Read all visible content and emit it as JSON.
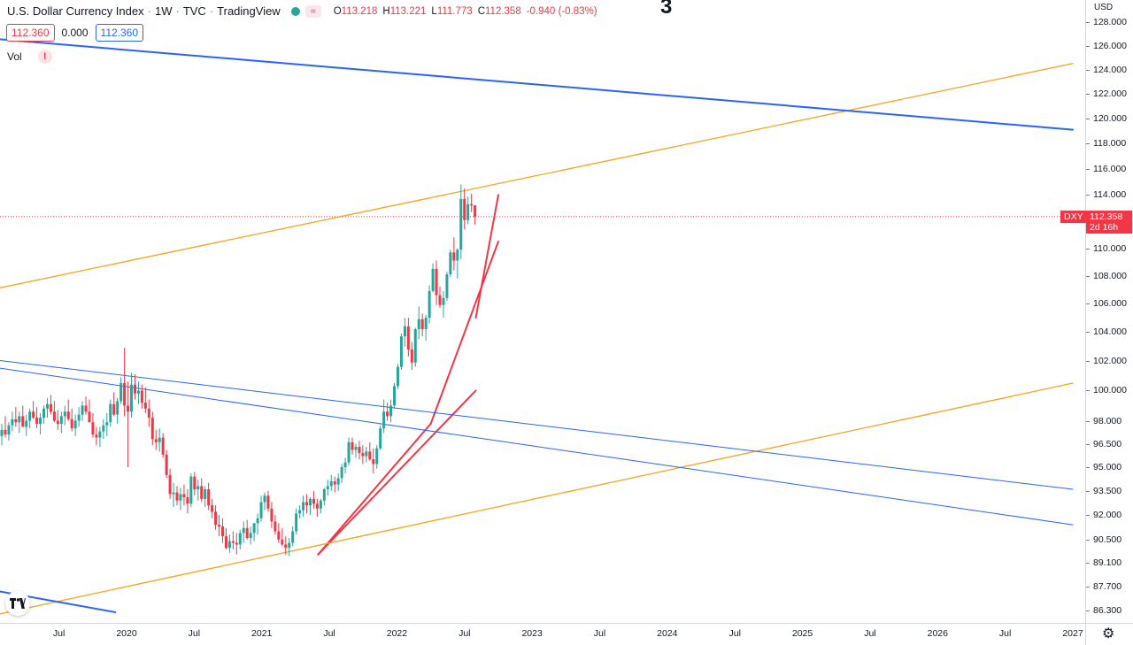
{
  "header": {
    "symbol_name": "U.S. Dollar Currency Index",
    "interval": "1W",
    "exchange": "TVC",
    "source": "TradingView",
    "ohlc": [
      {
        "k": "O",
        "v": "113.218"
      },
      {
        "k": "H",
        "v": "113.221"
      },
      {
        "k": "L",
        "v": "111.773"
      },
      {
        "k": "C",
        "v": "112.358"
      },
      {
        "k": "",
        "v": "-0.940 (-0.83%)"
      }
    ],
    "sell_price": "112.360",
    "spread": "0.000",
    "buy_price": "112.360",
    "volume_label": "Vol",
    "warning_glyph": "!",
    "annotation_digit": "3"
  },
  "price_axis": {
    "currency": "USD",
    "ticks": [
      "128.000",
      "126.000",
      "124.000",
      "122.000",
      "120.000",
      "118.000",
      "116.000",
      "114.000",
      "112.000",
      "110.000",
      "108.000",
      "106.000",
      "104.000",
      "102.000",
      "100.000",
      "98.000",
      "96.500",
      "95.000",
      "93.500",
      "92.000",
      "90.500",
      "89.100",
      "87.700",
      "86.300"
    ],
    "symbol_tag": "DXY",
    "last_price": "112.358",
    "countdown": "2d 16h"
  },
  "time_axis": {
    "labels": [
      "Jul",
      "2020",
      "Jul",
      "2021",
      "Jul",
      "2022",
      "Jul",
      "2023",
      "Jul",
      "2024",
      "Jul",
      "2025",
      "Jul",
      "2026",
      "Jul",
      "2027"
    ]
  },
  "colors": {
    "up": "#26a69a",
    "down": "#f23645",
    "trend_red": "#f23645",
    "channel_orange": "#f7a21b",
    "line_blue": "#2962ff",
    "price_line": "#f23645"
  },
  "icons": {
    "logo": "tradingview-logo-icon",
    "settings": "gear-icon",
    "data_source": "waves-icon"
  },
  "chart_data": {
    "type": "candlestick",
    "title": "U.S. Dollar Currency Index",
    "interval": "1W",
    "y_scale": "log",
    "ylim": [
      86.3,
      128.0
    ],
    "last_close": 112.358,
    "candles_weekly_approx": [
      [
        97.0,
        97.8,
        96.4,
        97.4
      ],
      [
        97.4,
        98.3,
        96.9,
        97.1
      ],
      [
        97.1,
        97.9,
        96.7,
        97.7
      ],
      [
        97.7,
        98.6,
        97.3,
        98.1
      ],
      [
        98.1,
        98.9,
        97.6,
        97.9
      ],
      [
        97.9,
        98.6,
        97.2,
        98.3
      ],
      [
        98.3,
        99.0,
        97.8,
        97.6
      ],
      [
        97.6,
        98.4,
        97.0,
        98.0
      ],
      [
        98.0,
        98.8,
        97.5,
        98.6
      ],
      [
        98.6,
        99.3,
        98.1,
        98.2
      ],
      [
        98.2,
        98.9,
        97.5,
        97.8
      ],
      [
        97.8,
        98.5,
        97.1,
        98.2
      ],
      [
        98.2,
        99.0,
        97.8,
        98.8
      ],
      [
        98.8,
        99.5,
        98.2,
        99.1
      ],
      [
        99.1,
        99.7,
        98.4,
        98.6
      ],
      [
        98.6,
        99.3,
        97.9,
        98.0
      ],
      [
        98.0,
        98.7,
        97.4,
        97.8
      ],
      [
        97.8,
        98.6,
        97.2,
        98.3
      ],
      [
        98.3,
        99.0,
        97.7,
        98.6
      ],
      [
        98.6,
        99.4,
        98.0,
        98.1
      ],
      [
        98.1,
        98.8,
        97.3,
        97.5
      ],
      [
        97.5,
        98.4,
        97.0,
        98.0
      ],
      [
        98.0,
        98.9,
        97.6,
        98.4
      ],
      [
        98.4,
        99.3,
        98.0,
        99.0
      ],
      [
        99.0,
        99.6,
        98.4,
        98.6
      ],
      [
        98.6,
        99.4,
        98.0,
        97.9
      ],
      [
        97.9,
        98.5,
        96.9,
        97.1
      ],
      [
        97.1,
        97.6,
        96.4,
        96.9
      ],
      [
        96.9,
        97.6,
        96.3,
        97.3
      ],
      [
        97.3,
        98.1,
        96.8,
        97.7
      ],
      [
        97.7,
        98.5,
        97.0,
        97.9
      ],
      [
        97.9,
        99.4,
        97.6,
        99.1
      ],
      [
        99.1,
        99.9,
        98.3,
        98.4
      ],
      [
        98.4,
        99.5,
        97.8,
        99.3
      ],
      [
        99.3,
        100.9,
        99.1,
        100.5
      ],
      [
        100.5,
        102.9,
        98.3,
        99.0
      ],
      [
        99.0,
        100.6,
        95.0,
        98.6
      ],
      [
        98.6,
        101.2,
        98.2,
        100.4
      ],
      [
        100.4,
        101.1,
        99.4,
        99.8
      ],
      [
        99.8,
        100.6,
        99.1,
        100.0
      ],
      [
        100.0,
        100.4,
        98.8,
        99.2
      ],
      [
        99.2,
        100.2,
        98.5,
        98.8
      ],
      [
        98.8,
        99.4,
        97.6,
        98.2
      ],
      [
        98.2,
        98.6,
        96.4,
        96.8
      ],
      [
        96.8,
        97.4,
        96.1,
        96.6
      ],
      [
        96.6,
        97.5,
        96.0,
        96.9
      ],
      [
        96.9,
        97.2,
        95.6,
        95.8
      ],
      [
        95.8,
        96.1,
        94.3,
        94.5
      ],
      [
        94.5,
        94.9,
        93.0,
        93.3
      ],
      [
        93.3,
        94.0,
        92.5,
        93.4
      ],
      [
        93.4,
        93.8,
        92.6,
        92.9
      ],
      [
        92.9,
        93.7,
        92.3,
        93.3
      ],
      [
        93.3,
        93.9,
        92.6,
        93.1
      ],
      [
        93.1,
        93.6,
        92.1,
        92.7
      ],
      [
        92.7,
        94.6,
        92.5,
        94.4
      ],
      [
        94.4,
        94.7,
        93.2,
        93.6
      ],
      [
        93.6,
        94.2,
        92.9,
        93.8
      ],
      [
        93.8,
        94.3,
        92.8,
        93.0
      ],
      [
        93.0,
        93.8,
        92.5,
        93.6
      ],
      [
        93.6,
        94.0,
        92.3,
        92.6
      ],
      [
        92.6,
        93.0,
        91.8,
        92.2
      ],
      [
        92.2,
        92.6,
        91.1,
        91.4
      ],
      [
        91.4,
        92.0,
        90.7,
        91.3
      ],
      [
        91.3,
        91.8,
        90.3,
        90.7
      ],
      [
        90.7,
        91.2,
        89.9,
        90.0
      ],
      [
        90.0,
        90.8,
        89.7,
        90.4
      ],
      [
        90.4,
        91.0,
        89.9,
        90.3
      ],
      [
        90.3,
        90.9,
        89.6,
        90.2
      ],
      [
        90.2,
        91.1,
        89.9,
        90.9
      ],
      [
        90.9,
        91.6,
        90.3,
        91.2
      ],
      [
        91.2,
        91.7,
        90.5,
        90.6
      ],
      [
        90.6,
        91.3,
        90.2,
        90.9
      ],
      [
        90.9,
        91.5,
        90.4,
        91.5
      ],
      [
        91.5,
        92.1,
        90.8,
        91.8
      ],
      [
        91.8,
        93.2,
        91.6,
        92.8
      ],
      [
        92.8,
        93.4,
        92.3,
        93.2
      ],
      [
        93.2,
        93.5,
        92.2,
        92.4
      ],
      [
        92.4,
        92.8,
        91.2,
        91.6
      ],
      [
        91.6,
        92.0,
        90.8,
        91.0
      ],
      [
        91.0,
        91.5,
        90.3,
        90.5
      ],
      [
        90.5,
        91.2,
        90.1,
        90.2
      ],
      [
        90.2,
        90.7,
        89.6,
        90.0
      ],
      [
        90.0,
        90.6,
        89.5,
        90.3
      ],
      [
        90.3,
        91.3,
        90.1,
        91.0
      ],
      [
        91.0,
        92.4,
        90.8,
        92.1
      ],
      [
        92.1,
        92.6,
        91.8,
        92.3
      ],
      [
        92.3,
        93.2,
        91.9,
        92.8
      ],
      [
        92.8,
        93.3,
        92.1,
        92.6
      ],
      [
        92.6,
        93.1,
        92.0,
        93.0
      ],
      [
        93.0,
        93.5,
        92.4,
        92.7
      ],
      [
        92.7,
        93.0,
        91.9,
        92.4
      ],
      [
        92.4,
        93.0,
        92.1,
        92.9
      ],
      [
        92.9,
        93.7,
        92.6,
        93.6
      ],
      [
        93.6,
        94.2,
        93.2,
        93.8
      ],
      [
        93.8,
        94.5,
        93.5,
        94.1
      ],
      [
        94.1,
        94.4,
        93.4,
        93.9
      ],
      [
        93.9,
        94.6,
        93.5,
        94.3
      ],
      [
        94.3,
        95.2,
        94.0,
        95.0
      ],
      [
        95.0,
        95.6,
        94.6,
        95.3
      ],
      [
        95.3,
        96.9,
        95.1,
        96.6
      ],
      [
        96.6,
        96.9,
        95.8,
        96.1
      ],
      [
        96.1,
        96.5,
        95.6,
        96.3
      ],
      [
        96.3,
        96.7,
        95.5,
        95.9
      ],
      [
        95.9,
        96.4,
        95.2,
        95.7
      ],
      [
        95.7,
        96.3,
        95.3,
        96.0
      ],
      [
        96.0,
        96.6,
        95.4,
        95.5
      ],
      [
        95.5,
        96.2,
        94.6,
        95.2
      ],
      [
        95.2,
        96.4,
        94.9,
        96.2
      ],
      [
        96.2,
        97.7,
        96.1,
        97.5
      ],
      [
        97.5,
        99.4,
        97.2,
        98.6
      ],
      [
        98.6,
        99.2,
        98.0,
        98.3
      ],
      [
        98.3,
        99.4,
        97.9,
        99.0
      ],
      [
        99.0,
        100.5,
        98.8,
        100.3
      ],
      [
        100.3,
        101.8,
        100.1,
        101.6
      ],
      [
        101.6,
        103.9,
        101.4,
        103.7
      ],
      [
        103.7,
        105.0,
        103.0,
        104.4
      ],
      [
        104.4,
        105.0,
        102.3,
        102.8
      ],
      [
        102.8,
        103.3,
        101.4,
        101.9
      ],
      [
        101.9,
        104.3,
        101.6,
        104.2
      ],
      [
        104.2,
        105.8,
        103.5,
        104.9
      ],
      [
        104.9,
        105.3,
        103.7,
        104.2
      ],
      [
        104.2,
        105.2,
        103.4,
        105.0
      ],
      [
        105.0,
        107.3,
        104.6,
        106.9
      ],
      [
        106.9,
        108.9,
        106.8,
        108.5
      ],
      [
        108.5,
        109.1,
        105.9,
        106.6
      ],
      [
        106.6,
        107.2,
        105.7,
        105.9
      ],
      [
        105.9,
        106.9,
        105.0,
        106.4
      ],
      [
        106.4,
        108.3,
        106.2,
        108.1
      ],
      [
        108.1,
        109.9,
        107.9,
        109.7
      ],
      [
        109.7,
        110.8,
        108.4,
        109.1
      ],
      [
        109.1,
        110.0,
        107.8,
        109.9
      ],
      [
        109.9,
        114.8,
        109.2,
        113.7
      ],
      [
        113.7,
        114.5,
        111.4,
        112.1
      ],
      [
        112.1,
        113.9,
        111.8,
        113.3
      ],
      [
        113.3,
        114.1,
        112.7,
        113.2
      ],
      [
        113.218,
        113.221,
        111.773,
        112.358
      ]
    ],
    "drawings": [
      {
        "type": "trend_line",
        "color": "red",
        "from": {
          "date": "2021-06",
          "price": 89.6
        },
        "to": {
          "date": "2022-04",
          "price": 97.8
        }
      },
      {
        "type": "trend_line",
        "color": "red",
        "from": {
          "date": "2021-06",
          "price": 89.6
        },
        "to": {
          "date": "2022-08",
          "price": 100.0
        }
      },
      {
        "type": "trend_line",
        "color": "red",
        "from": {
          "date": "2022-04",
          "price": 97.8
        },
        "to": {
          "date": "2022-10",
          "price": 110.5
        }
      },
      {
        "type": "trend_line",
        "color": "red",
        "from": {
          "date": "2022-08",
          "price": 105.0
        },
        "to": {
          "date": "2022-10",
          "price": 114.0
        }
      },
      {
        "type": "trend_line",
        "color": "orange",
        "from": {
          "date": "2019-01",
          "price": 107.0
        },
        "to": {
          "date": "2027-01",
          "price": 124.5
        }
      },
      {
        "type": "trend_line",
        "color": "orange",
        "from": {
          "date": "2019-01",
          "price": 86.0
        },
        "to": {
          "date": "2027-01",
          "price": 100.5
        }
      },
      {
        "type": "trend_line",
        "color": "blue",
        "from": {
          "date": "2019-01",
          "price": 126.6
        },
        "to": {
          "date": "2027-01",
          "price": 119.1
        }
      },
      {
        "type": "trend_line",
        "color": "blue",
        "from": {
          "date": "2019-01",
          "price": 101.6
        },
        "to": {
          "date": "2027-01",
          "price": 91.4
        }
      },
      {
        "type": "trend_line",
        "color": "blue",
        "from": {
          "date": "2019-01",
          "price": 102.1
        },
        "to": {
          "date": "2027-01",
          "price": 93.6
        }
      },
      {
        "type": "trend_line",
        "color": "blue",
        "from": {
          "date": "2019-01",
          "price": 87.5
        },
        "to": {
          "date": "2019-12",
          "price": 86.2
        }
      }
    ]
  }
}
